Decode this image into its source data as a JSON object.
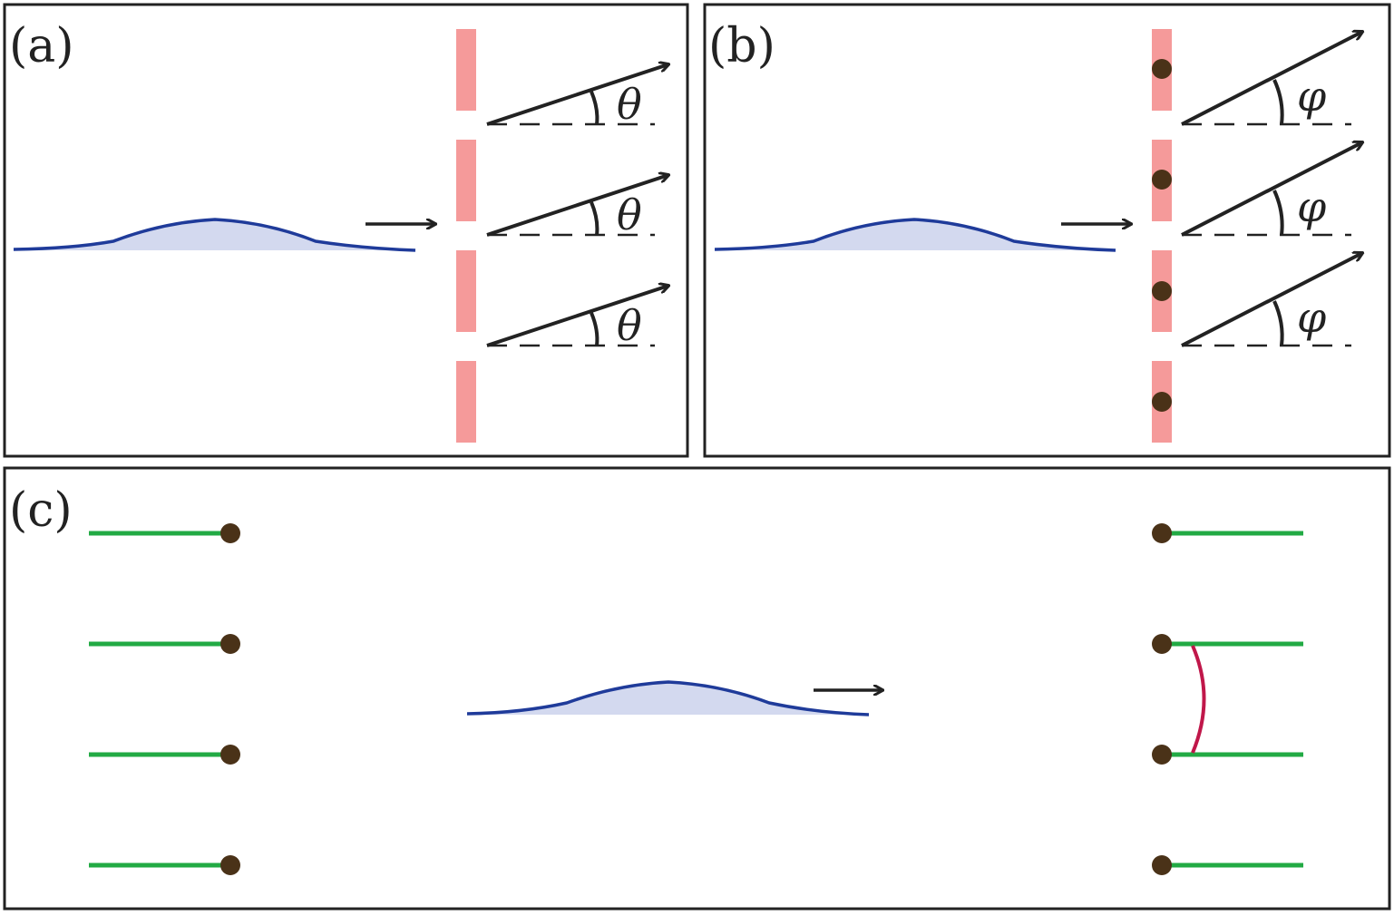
{
  "panels": {
    "a": {
      "label": "(a)",
      "angle_symbol": "θ"
    },
    "b": {
      "label": "(b)",
      "angle_symbol": "φ"
    },
    "c": {
      "label": "(c)"
    }
  },
  "colors": {
    "frame": "#222222",
    "wave_line": "#1f3b9a",
    "wave_fill": "#d3d9ef",
    "slit": "#f59a9a",
    "dot": "#4a3218",
    "green_line": "#22aa44",
    "link_curve": "#c0174a",
    "arrow": "#222222"
  }
}
